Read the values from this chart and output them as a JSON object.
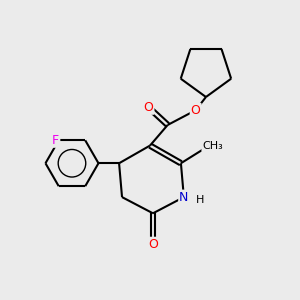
{
  "background_color": "#ebebeb",
  "bond_color": "#000000",
  "bond_width": 1.5,
  "atom_colors": {
    "O": "#ff0000",
    "N": "#0000cd",
    "F": "#ee00ee",
    "C": "#000000",
    "H": "#000000"
  },
  "font_size": 9,
  "fig_w": 3.0,
  "fig_h": 3.0,
  "dpi": 100,
  "xlim": [
    0.0,
    10.0
  ],
  "ylim": [
    0.0,
    10.0
  ]
}
